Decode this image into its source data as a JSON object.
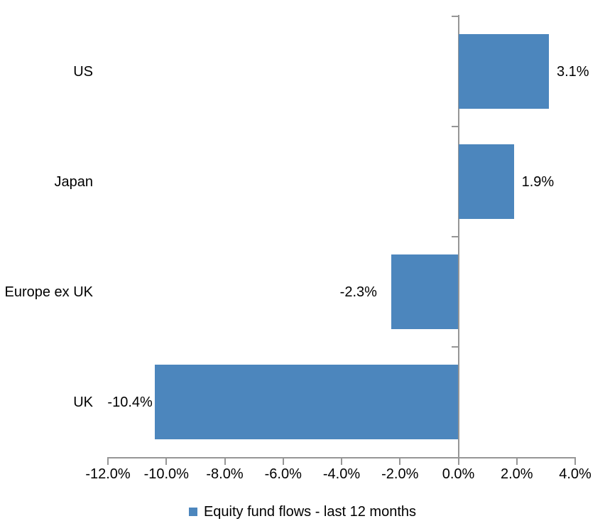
{
  "chart_data": {
    "type": "bar",
    "orientation": "horizontal",
    "title": "",
    "xlabel": "",
    "ylabel": "",
    "categories": [
      "US",
      "Japan",
      "Europe ex UK",
      "UK"
    ],
    "series": [
      {
        "name": "Equity fund flows - last 12 months",
        "values": [
          3.1,
          1.9,
          -2.3,
          -10.4
        ],
        "data_labels": [
          "3.1%",
          "1.9%",
          "-2.3%",
          "-10.4%"
        ]
      }
    ],
    "xlim": [
      -12,
      4
    ],
    "x_ticks": [
      -12,
      -10,
      -8,
      -6,
      -4,
      -2,
      0,
      2,
      4
    ],
    "x_tick_labels": [
      "-12.0%",
      "-10.0%",
      "-8.0%",
      "-6.0%",
      "-4.0%",
      "-2.0%",
      "0.0%",
      "2.0%",
      "4.0%"
    ],
    "grid": false,
    "legend_position": "bottom",
    "colors": {
      "bar": "#4C86BD",
      "axis": "#969696",
      "text": "#000000",
      "background": "#FFFFFF"
    }
  }
}
